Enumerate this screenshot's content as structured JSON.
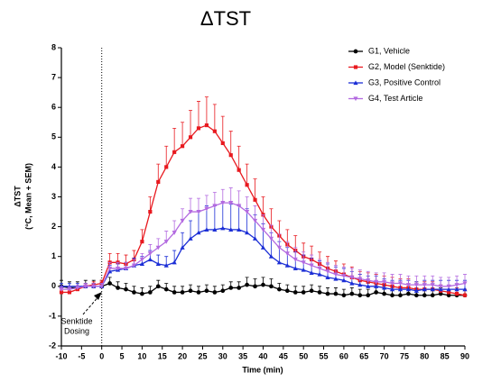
{
  "chart_data": {
    "type": "line",
    "title": "ΔTST",
    "y_label": [
      "ΔTST",
      "(°C, Mean + SEM)"
    ],
    "x_label": "Time (min)",
    "annotation": [
      "Senktide",
      "Dosing"
    ],
    "vline": 0,
    "xlim": [
      -10,
      90
    ],
    "xticks": [
      -10,
      -5,
      0,
      5,
      10,
      15,
      20,
      25,
      30,
      35,
      40,
      45,
      50,
      55,
      60,
      65,
      70,
      75,
      80,
      85,
      90
    ],
    "ylim": [
      -2,
      8
    ],
    "yticks": [
      -2,
      -1,
      0,
      1,
      2,
      3,
      4,
      5,
      6,
      7,
      8
    ],
    "legend": "top-right",
    "x": [
      -10,
      -8,
      -6,
      -4,
      -2,
      0,
      2,
      4,
      6,
      8,
      10,
      12,
      14,
      16,
      18,
      20,
      22,
      24,
      26,
      28,
      30,
      32,
      34,
      36,
      38,
      40,
      42,
      44,
      46,
      48,
      50,
      52,
      54,
      56,
      58,
      60,
      62,
      64,
      66,
      68,
      70,
      72,
      74,
      76,
      78,
      80,
      82,
      84,
      86,
      88,
      90
    ],
    "series": [
      {
        "name": "G1, Vehicle",
        "color": "#000000",
        "marker": "circle",
        "values": [
          0,
          -0.05,
          -0.05,
          0,
          0,
          0,
          0.1,
          -0.05,
          -0.1,
          -0.2,
          -0.25,
          -0.2,
          0,
          -0.1,
          -0.2,
          -0.2,
          -0.15,
          -0.2,
          -0.15,
          -0.2,
          -0.15,
          -0.05,
          -0.05,
          0.05,
          0,
          0.05,
          0,
          -0.1,
          -0.15,
          -0.2,
          -0.2,
          -0.15,
          -0.2,
          -0.25,
          -0.25,
          -0.3,
          -0.25,
          -0.3,
          -0.3,
          -0.2,
          -0.25,
          -0.3,
          -0.3,
          -0.25,
          -0.3,
          -0.3,
          -0.3,
          -0.25,
          -0.3,
          -0.3,
          -0.3
        ],
        "errors": [
          0.2,
          0.2,
          0.2,
          0.2,
          0.2,
          0.2,
          0.2,
          0.2,
          0.2,
          0.2,
          0.2,
          0.2,
          0.2,
          0.2,
          0.2,
          0.2,
          0.2,
          0.2,
          0.2,
          0.2,
          0.2,
          0.2,
          0.2,
          0.25,
          0.25,
          0.25,
          0.25,
          0.2,
          0.2,
          0.2,
          0.2,
          0.2,
          0.2,
          0.2,
          0.2,
          0.2,
          0.2,
          0.2,
          0.2,
          0.2,
          0.2,
          0.2,
          0.2,
          0.2,
          0.2,
          0.2,
          0.2,
          0.2,
          0.2,
          0.2,
          0.2
        ]
      },
      {
        "name": "G2, Model (Senktide)",
        "color": "#e8191f",
        "marker": "square",
        "values": [
          -0.2,
          -0.2,
          -0.1,
          0,
          0.05,
          0.1,
          0.8,
          0.8,
          0.75,
          0.9,
          1.5,
          2.5,
          3.5,
          4.0,
          4.5,
          4.7,
          5.0,
          5.3,
          5.4,
          5.2,
          4.8,
          4.4,
          3.9,
          3.4,
          2.9,
          2.4,
          2.0,
          1.7,
          1.4,
          1.2,
          1.0,
          0.9,
          0.75,
          0.6,
          0.5,
          0.4,
          0.3,
          0.2,
          0.15,
          0.1,
          0.05,
          0,
          -0.05,
          -0.05,
          -0.1,
          -0.1,
          -0.1,
          -0.15,
          -0.2,
          -0.25,
          -0.3
        ],
        "errors": [
          0.1,
          0.1,
          0.1,
          0.1,
          0.1,
          0.1,
          0.3,
          0.3,
          0.3,
          0.3,
          0.4,
          0.5,
          0.6,
          0.7,
          0.8,
          0.8,
          0.9,
          0.9,
          0.95,
          0.9,
          0.9,
          0.8,
          0.8,
          0.7,
          0.7,
          0.6,
          0.6,
          0.5,
          0.5,
          0.5,
          0.45,
          0.45,
          0.4,
          0.4,
          0.35,
          0.35,
          0.35,
          0.3,
          0.3,
          0.3,
          0.3,
          0.3,
          0.3,
          0.3,
          0.25,
          0.25,
          0.25,
          0.2,
          0.2,
          0.2,
          0.2
        ]
      },
      {
        "name": "G3, Positive Control",
        "color": "#1c2fd6",
        "marker": "triangle-up",
        "values": [
          0,
          0,
          0,
          0,
          0,
          0,
          0.5,
          0.55,
          0.6,
          0.7,
          0.75,
          0.9,
          0.75,
          0.7,
          0.8,
          1.3,
          1.6,
          1.8,
          1.9,
          1.9,
          1.95,
          1.9,
          1.9,
          1.8,
          1.6,
          1.3,
          1.0,
          0.8,
          0.7,
          0.6,
          0.55,
          0.45,
          0.4,
          0.3,
          0.25,
          0.2,
          0.1,
          0.05,
          0,
          0,
          -0.05,
          -0.1,
          -0.1,
          -0.1,
          -0.15,
          -0.1,
          -0.1,
          -0.1,
          -0.1,
          -0.1,
          -0.1
        ],
        "errors": [
          0.1,
          0.1,
          0.1,
          0.1,
          0.1,
          0.1,
          0.2,
          0.2,
          0.2,
          0.25,
          0.25,
          0.3,
          0.3,
          0.3,
          0.4,
          0.5,
          0.6,
          0.7,
          0.8,
          0.8,
          0.85,
          0.85,
          0.8,
          0.8,
          0.8,
          0.8,
          0.8,
          0.7,
          0.6,
          0.55,
          0.5,
          0.5,
          0.45,
          0.45,
          0.4,
          0.4,
          0.4,
          0.35,
          0.35,
          0.35,
          0.3,
          0.3,
          0.3,
          0.3,
          0.3,
          0.3,
          0.3,
          0.3,
          0.3,
          0.3,
          0.3
        ]
      },
      {
        "name": "G4, Test Article",
        "color": "#b36ae0",
        "marker": "triangle-down",
        "values": [
          -0.1,
          -0.1,
          -0.05,
          0,
          0,
          0,
          0.6,
          0.6,
          0.6,
          0.7,
          0.9,
          1.1,
          1.3,
          1.5,
          1.8,
          2.2,
          2.5,
          2.5,
          2.6,
          2.7,
          2.8,
          2.8,
          2.7,
          2.5,
          2.2,
          1.9,
          1.6,
          1.3,
          1.1,
          0.9,
          0.8,
          0.7,
          0.6,
          0.5,
          0.4,
          0.35,
          0.3,
          0.25,
          0.2,
          0.15,
          0.15,
          0.1,
          0.1,
          0.05,
          0.05,
          0.05,
          0.05,
          0,
          0,
          0.05,
          0.1
        ],
        "errors": [
          0.1,
          0.1,
          0.1,
          0.1,
          0.1,
          0.1,
          0.2,
          0.2,
          0.2,
          0.2,
          0.2,
          0.3,
          0.3,
          0.35,
          0.4,
          0.4,
          0.45,
          0.45,
          0.45,
          0.45,
          0.45,
          0.5,
          0.5,
          0.5,
          0.5,
          0.5,
          0.45,
          0.45,
          0.4,
          0.4,
          0.35,
          0.35,
          0.3,
          0.3,
          0.3,
          0.3,
          0.3,
          0.3,
          0.3,
          0.3,
          0.3,
          0.3,
          0.3,
          0.3,
          0.3,
          0.3,
          0.3,
          0.3,
          0.3,
          0.3,
          0.3
        ]
      }
    ]
  }
}
